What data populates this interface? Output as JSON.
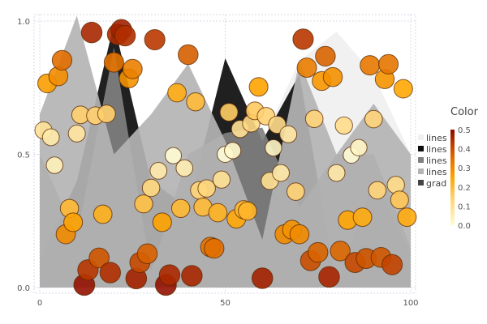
{
  "chart_data": {
    "type": "line",
    "title": "",
    "xlabel": "",
    "ylabel": "",
    "xlim": [
      0,
      100
    ],
    "ylim": [
      0,
      1
    ],
    "grid": true,
    "legend_placement": "right",
    "x_ticks": [
      "0",
      "50",
      "100"
    ],
    "y_ticks": [
      "0.0",
      "0.5",
      "1.0"
    ],
    "x_tick_values": [
      0,
      50,
      100
    ],
    "y_tick_values": [
      0,
      0.5,
      1
    ],
    "line_x": [
      0,
      10,
      20,
      30,
      40,
      50,
      60,
      70,
      80,
      90,
      100
    ],
    "series": [
      {
        "name": "lines",
        "color": "#f0f0f0",
        "fill": "to-zero",
        "values": [
          0.3,
          0.25,
          0.35,
          0.4,
          0.35,
          0.45,
          0.55,
          0.85,
          0.96,
          0.8,
          0.5
        ]
      },
      {
        "name": "lines",
        "color": "#0d0d0d",
        "fill": "to-zero",
        "values": [
          0.1,
          0.4,
          0.99,
          0.4,
          0.3,
          0.86,
          0.55,
          0.8,
          0.0,
          0.41,
          0.13
        ]
      },
      {
        "name": "lines",
        "color": "#808080",
        "fill": "to-zero",
        "values": [
          0.5,
          0.19,
          0.9,
          0.06,
          0.5,
          0.58,
          0.6,
          0.3,
          0.5,
          0.5,
          0.15
        ]
      },
      {
        "name": "lines",
        "color": "#b4b4b4",
        "fill": "to-zero",
        "values": [
          0.65,
          1.02,
          0.5,
          0.65,
          0.84,
          0.55,
          0.18,
          0.85,
          0.5,
          0.69,
          0.5
        ]
      }
    ],
    "scatter": {
      "name": "grad",
      "legend_color": "#444444",
      "color_by": "abs(y - 0.5)",
      "colormap": "heat",
      "x": [
        1,
        2,
        3,
        4,
        5,
        6,
        7,
        8,
        9,
        10,
        11,
        12,
        13,
        14,
        15,
        16,
        17,
        18,
        19,
        20,
        21,
        22,
        23,
        24,
        25,
        26,
        27,
        28,
        29,
        30,
        31,
        32,
        33,
        34,
        35,
        36,
        37,
        38,
        39,
        40,
        41,
        42,
        43,
        44,
        45,
        46,
        47,
        48,
        49,
        50,
        51,
        52,
        53,
        54,
        55,
        56,
        57,
        58,
        59,
        60,
        61,
        62,
        63,
        64,
        65,
        66,
        67,
        68,
        69,
        70,
        71,
        72,
        73,
        74,
        75,
        76,
        77,
        78,
        79,
        80,
        81,
        82,
        83,
        84,
        85,
        86,
        87,
        88,
        89,
        90,
        91,
        92,
        93,
        94,
        95,
        96,
        97,
        98,
        99
      ],
      "y": [
        0.59,
        0.766,
        0.564,
        0.459,
        0.793,
        0.853,
        0.2,
        0.297,
        0.245,
        0.578,
        0.648,
        0.01,
        0.066,
        0.957,
        0.645,
        0.111,
        0.275,
        0.652,
        0.056,
        0.845,
        0.95,
        0.967,
        0.945,
        0.785,
        0.82,
        0.034,
        0.094,
        0.314,
        0.127,
        0.374,
        0.93,
        0.438,
        0.245,
        0.01,
        0.047,
        0.495,
        0.731,
        0.297,
        0.448,
        0.874,
        0.044,
        0.697,
        0.365,
        0.302,
        0.372,
        0.152,
        0.147,
        0.281,
        0.405,
        0.5,
        0.658,
        0.514,
        0.258,
        0.595,
        0.292,
        0.287,
        0.616,
        0.663,
        0.753,
        0.035,
        0.643,
        0.4,
        0.524,
        0.611,
        0.43,
        0.2,
        0.575,
        0.217,
        0.36,
        0.2,
        0.932,
        0.825,
        0.101,
        0.633,
        0.132,
        0.775,
        0.868,
        0.04,
        0.79,
        0.43,
        0.137,
        0.608,
        0.253,
        0.497,
        0.094,
        0.525,
        0.264,
        0.109,
        0.834,
        0.632,
        0.365,
        0.113,
        0.782,
        0.838,
        0.086,
        0.385,
        0.329,
        0.746,
        0.264
      ]
    },
    "colorbar": {
      "title": "Color",
      "ticks": [
        "0.0",
        "0.1",
        "0.2",
        "0.3",
        "0.4",
        "0.5"
      ],
      "range": [
        0,
        0.5
      ]
    }
  }
}
